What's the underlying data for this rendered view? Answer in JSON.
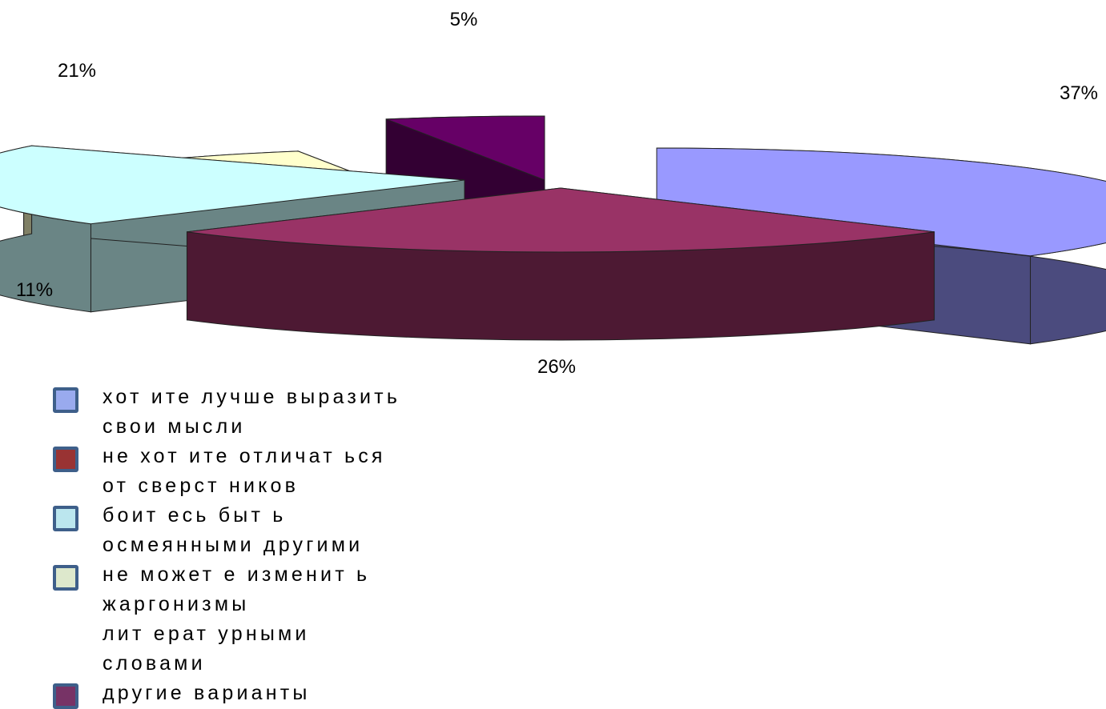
{
  "chart_data": {
    "type": "pie",
    "title": "",
    "legend_position": "bottom-left",
    "slices": [
      {
        "label": "хотите лучше выразить свои мысли",
        "value": 37,
        "value_label": "37%",
        "color": "#9999ff",
        "side_color": "#4b4b7e"
      },
      {
        "label": "не хотите отличаться от сверстников",
        "value": 26,
        "value_label": "26%",
        "color": "#993366",
        "side_color": "#4d1933"
      },
      {
        "label": "боитесь быть осмеянными другими",
        "value": 21,
        "value_label": "21%",
        "color": "#ccffff",
        "side_color": "#6a8585"
      },
      {
        "label": "не можете изменить жаргонизмы литературными словами",
        "value": 11,
        "value_label": "11%",
        "color": "#ffffcc",
        "side_color": "#808066"
      },
      {
        "label": "другие варианты",
        "value": 5,
        "value_label": "5%",
        "color": "#660066",
        "side_color": "#330033"
      }
    ]
  },
  "legend": {
    "items": [
      {
        "lines": [
          "хот ите  лучше выразить",
          "свои мысли"
        ],
        "swatch_color": "#99aaee"
      },
      {
        "lines": [
          "не хот ите отличат ься",
          "от сверст ников"
        ],
        "swatch_color": "#993333"
      },
      {
        "lines": [
          "боит есь быт ь",
          "осмеянными другими"
        ],
        "swatch_color": "#bbe6ee"
      },
      {
        "lines": [
          "не может е изменит ь",
          "жаргонизмы",
          "лит ерат урными",
          "словами"
        ],
        "swatch_color": "#dde8cc"
      },
      {
        "lines": [
          "другие варианты"
        ],
        "swatch_color": "#773366"
      }
    ]
  }
}
